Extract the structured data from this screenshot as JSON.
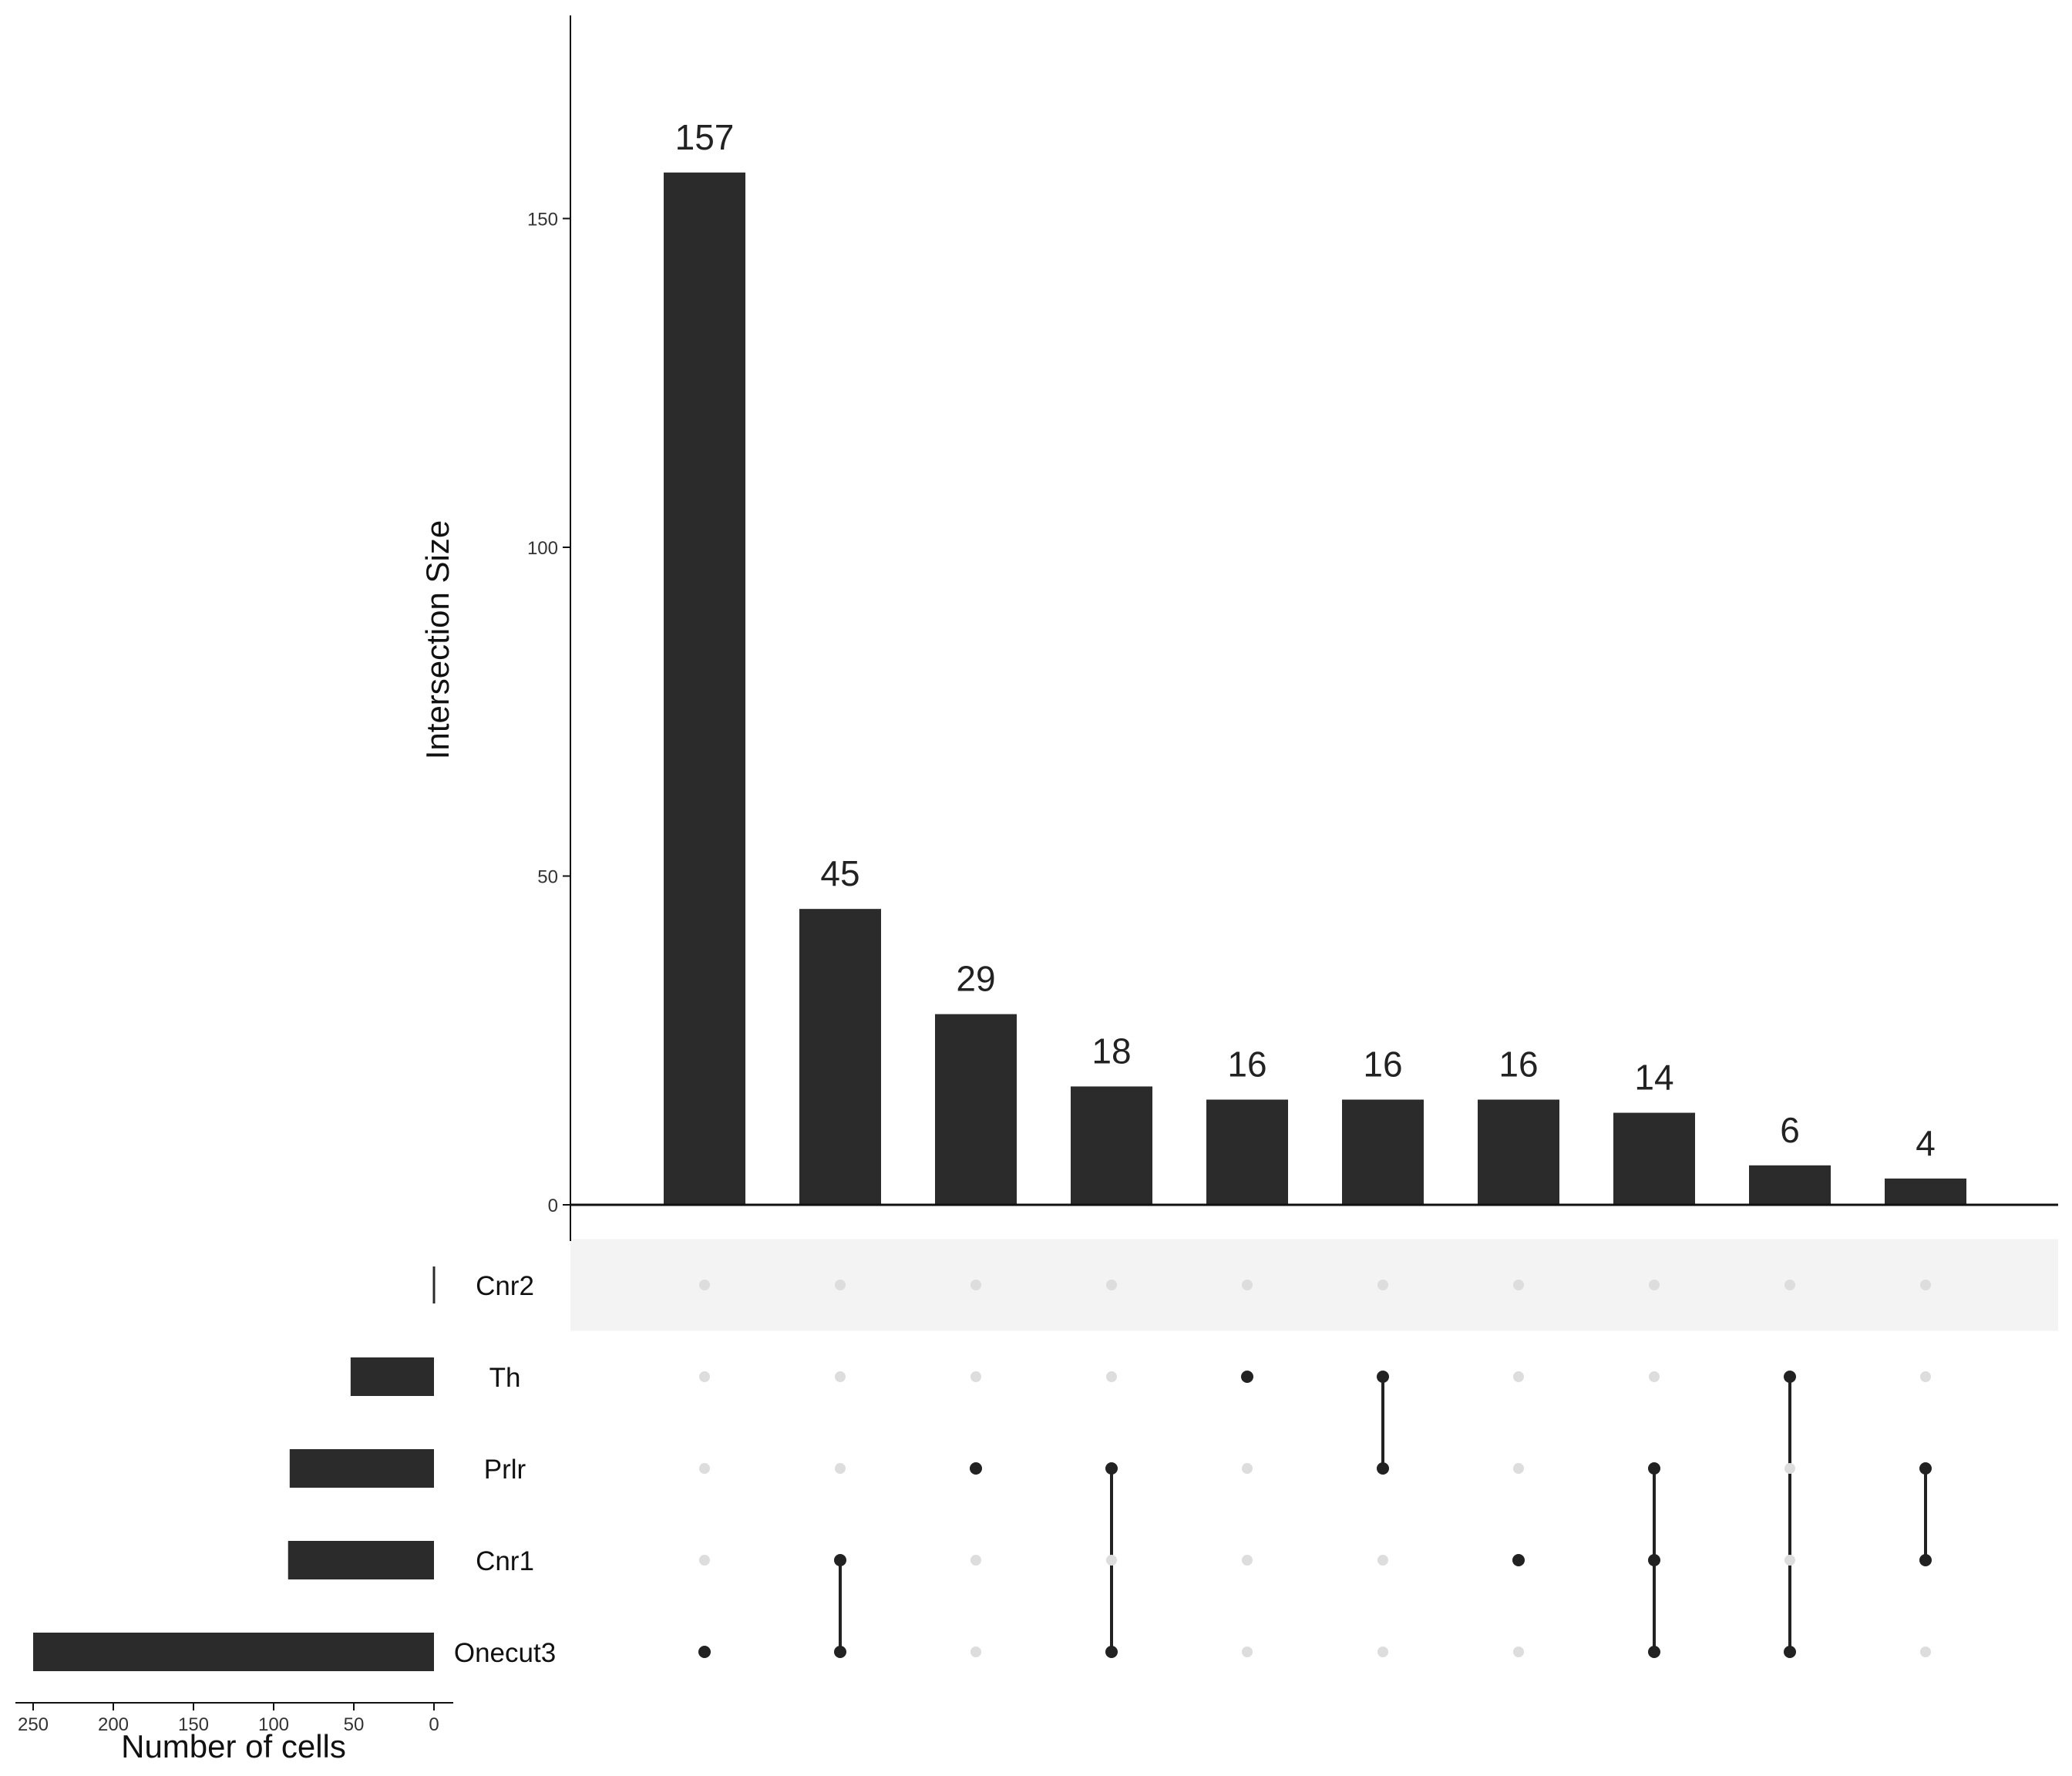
{
  "chart_data": {
    "type": "upset",
    "ylabel": "Intersection Size",
    "ylim": [
      0,
      180
    ],
    "yticks": [
      0,
      50,
      100,
      150
    ],
    "set_size_label": "Number of cells",
    "set_size_ticks": [
      250,
      200,
      150,
      100,
      50,
      0
    ],
    "set_size_xlim": [
      260,
      0
    ],
    "sets": [
      {
        "name": "Cnr2",
        "size": 1
      },
      {
        "name": "Th",
        "size": 52
      },
      {
        "name": "Prlr",
        "size": 90
      },
      {
        "name": "Cnr1",
        "size": 91
      },
      {
        "name": "Onecut3",
        "size": 250
      }
    ],
    "intersections": [
      {
        "size": 157,
        "sets": [
          "Onecut3"
        ]
      },
      {
        "size": 45,
        "sets": [
          "Cnr1",
          "Onecut3"
        ]
      },
      {
        "size": 29,
        "sets": [
          "Prlr"
        ]
      },
      {
        "size": 18,
        "sets": [
          "Prlr",
          "Onecut3"
        ]
      },
      {
        "size": 16,
        "sets": [
          "Th"
        ]
      },
      {
        "size": 16,
        "sets": [
          "Th",
          "Prlr"
        ]
      },
      {
        "size": 16,
        "sets": [
          "Cnr1"
        ]
      },
      {
        "size": 14,
        "sets": [
          "Prlr",
          "Cnr1",
          "Onecut3"
        ]
      },
      {
        "size": 6,
        "sets": [
          "Th",
          "Onecut3"
        ]
      },
      {
        "size": 4,
        "sets": [
          "Prlr",
          "Cnr1"
        ]
      }
    ],
    "colors": {
      "bar": "#2b2b2b",
      "dot_active": "#222222",
      "dot_inactive": "#dddddd",
      "stripe": "#f3f3f3",
      "axis": "#111111"
    }
  }
}
